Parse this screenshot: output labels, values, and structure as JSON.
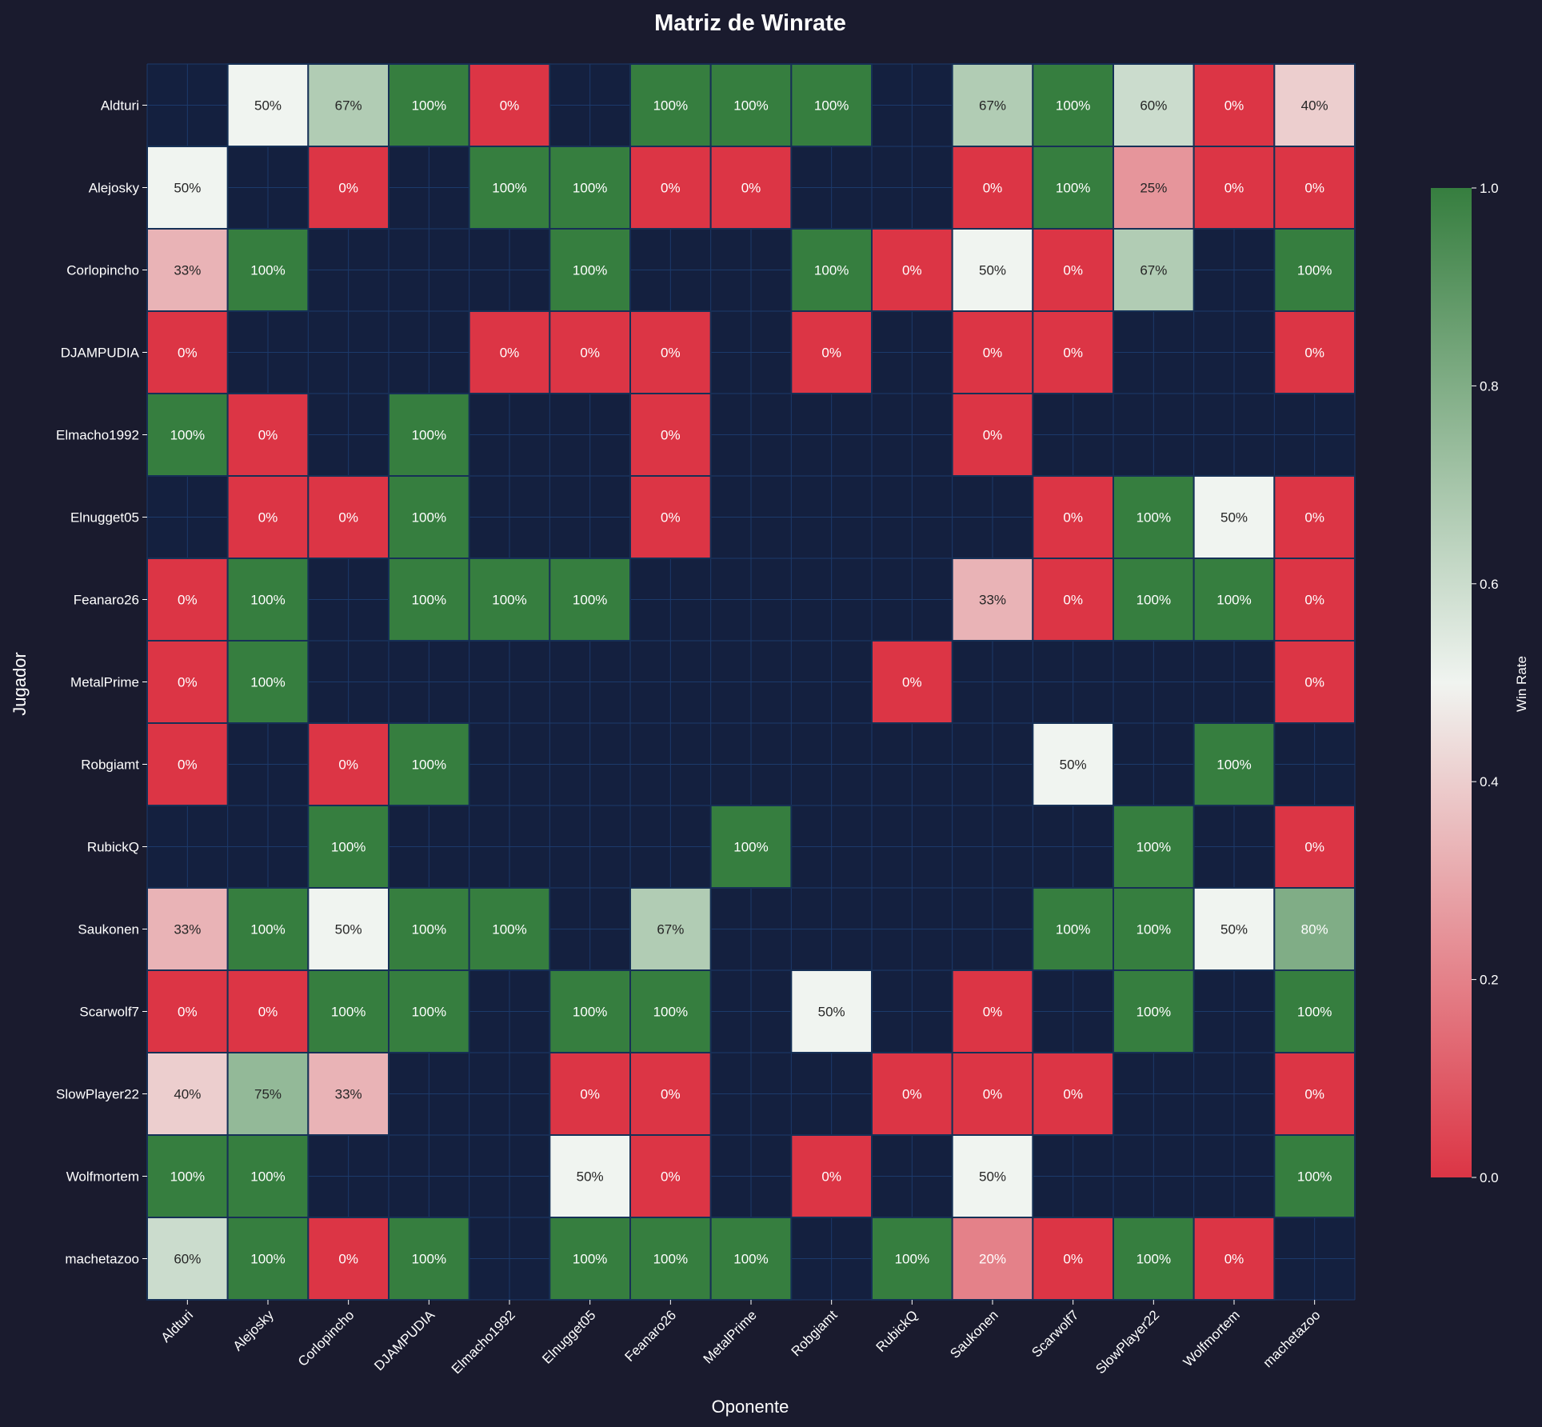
{
  "chart_data": {
    "type": "heatmap",
    "title": "Matriz de Winrate",
    "xlabel": "Oponente",
    "ylabel": "Jugador",
    "colorbar_label": "Win Rate",
    "colorbar_ticks": [
      "0.0",
      "0.2",
      "0.4",
      "0.6",
      "0.8",
      "1.0"
    ],
    "value_range": [
      0,
      1
    ],
    "colors": {
      "background": "#1a1b2e",
      "empty_cell": "#14203f",
      "grid_line": "#1c3a6b",
      "low": "#dc3545",
      "mid": "#f0f4f0",
      "high": "#367e3f"
    },
    "rows": [
      "Aldturi",
      "Alejosky",
      "Corlopincho",
      "DJAMPUDIA",
      "Elmacho1992",
      "Elnugget05",
      "Feanaro26",
      "MetalPrime",
      "Robgiamt",
      "RubickQ",
      "Saukonen",
      "Scarwolf7",
      "SlowPlayer22",
      "Wolfmortem",
      "machetazoo"
    ],
    "columns": [
      "Aldturi",
      "Alejosky",
      "Corlopincho",
      "DJAMPUDIA",
      "Elmacho1992",
      "Elnugget05",
      "Feanaro26",
      "MetalPrime",
      "Robgiamt",
      "RubickQ",
      "Saukonen",
      "Scarwolf7",
      "SlowPlayer22",
      "Wolfmortem",
      "machetazoo"
    ],
    "values": [
      [
        null,
        0.5,
        0.67,
        1.0,
        0.0,
        null,
        1.0,
        1.0,
        1.0,
        null,
        0.67,
        1.0,
        0.6,
        0.0,
        0.4
      ],
      [
        0.5,
        null,
        0.0,
        null,
        1.0,
        1.0,
        0.0,
        0.0,
        null,
        null,
        0.0,
        1.0,
        0.25,
        0.0,
        0.0
      ],
      [
        0.33,
        1.0,
        null,
        null,
        null,
        1.0,
        null,
        null,
        1.0,
        0.0,
        0.5,
        0.0,
        0.67,
        null,
        1.0
      ],
      [
        0.0,
        null,
        null,
        null,
        0.0,
        0.0,
        0.0,
        null,
        0.0,
        null,
        0.0,
        0.0,
        null,
        null,
        0.0
      ],
      [
        1.0,
        0.0,
        null,
        1.0,
        null,
        null,
        0.0,
        null,
        null,
        null,
        0.0,
        null,
        null,
        null,
        null
      ],
      [
        null,
        0.0,
        0.0,
        1.0,
        null,
        null,
        0.0,
        null,
        null,
        null,
        null,
        0.0,
        1.0,
        0.5,
        0.0
      ],
      [
        0.0,
        1.0,
        null,
        1.0,
        1.0,
        1.0,
        null,
        null,
        null,
        null,
        0.33,
        0.0,
        1.0,
        1.0,
        0.0
      ],
      [
        0.0,
        1.0,
        null,
        null,
        null,
        null,
        null,
        null,
        null,
        0.0,
        null,
        null,
        null,
        null,
        0.0
      ],
      [
        0.0,
        null,
        0.0,
        1.0,
        null,
        null,
        null,
        null,
        null,
        null,
        null,
        0.5,
        null,
        1.0,
        null
      ],
      [
        null,
        null,
        1.0,
        null,
        null,
        null,
        null,
        1.0,
        null,
        null,
        null,
        null,
        1.0,
        null,
        0.0
      ],
      [
        0.33,
        1.0,
        0.5,
        1.0,
        1.0,
        null,
        0.67,
        null,
        null,
        null,
        null,
        1.0,
        1.0,
        0.5,
        0.8
      ],
      [
        0.0,
        0.0,
        1.0,
        1.0,
        null,
        1.0,
        1.0,
        null,
        0.5,
        null,
        0.0,
        null,
        1.0,
        null,
        1.0
      ],
      [
        0.4,
        0.75,
        0.33,
        null,
        null,
        0.0,
        0.0,
        null,
        null,
        0.0,
        0.0,
        0.0,
        null,
        null,
        0.0
      ],
      [
        1.0,
        1.0,
        null,
        null,
        null,
        0.5,
        0.0,
        null,
        0.0,
        null,
        0.5,
        null,
        null,
        null,
        1.0
      ],
      [
        0.6,
        1.0,
        0.0,
        1.0,
        null,
        1.0,
        1.0,
        1.0,
        null,
        1.0,
        0.2,
        0.0,
        1.0,
        0.0,
        null
      ]
    ],
    "cell_labels": [
      [
        "",
        "50%",
        "67%",
        "100%",
        "0%",
        "",
        "100%",
        "100%",
        "100%",
        "",
        "67%",
        "100%",
        "60%",
        "0%",
        "40%"
      ],
      [
        "50%",
        "",
        "0%",
        "",
        "100%",
        "100%",
        "0%",
        "0%",
        "",
        "",
        "0%",
        "100%",
        "25%",
        "0%",
        "0%"
      ],
      [
        "33%",
        "100%",
        "",
        "",
        "",
        "100%",
        "",
        "",
        "100%",
        "0%",
        "50%",
        "0%",
        "67%",
        "",
        "100%"
      ],
      [
        "0%",
        "",
        "",
        "",
        "0%",
        "0%",
        "0%",
        "",
        "0%",
        "",
        "0%",
        "0%",
        "",
        "",
        "0%"
      ],
      [
        "100%",
        "0%",
        "",
        "100%",
        "",
        "",
        "0%",
        "",
        "",
        "",
        "0%",
        "",
        "",
        "",
        ""
      ],
      [
        "",
        "0%",
        "0%",
        "100%",
        "",
        "",
        "0%",
        "",
        "",
        "",
        "",
        "0%",
        "100%",
        "50%",
        "0%"
      ],
      [
        "0%",
        "100%",
        "",
        "100%",
        "100%",
        "100%",
        "",
        "",
        "",
        "",
        "33%",
        "0%",
        "100%",
        "100%",
        "0%"
      ],
      [
        "0%",
        "100%",
        "",
        "",
        "",
        "",
        "",
        "",
        "",
        "0%",
        "",
        "",
        "",
        "",
        "0%"
      ],
      [
        "0%",
        "",
        "0%",
        "100%",
        "",
        "",
        "",
        "",
        "",
        "",
        "",
        "50%",
        "",
        "100%",
        ""
      ],
      [
        "",
        "",
        "100%",
        "",
        "",
        "",
        "",
        "100%",
        "",
        "",
        "",
        "",
        "100%",
        "",
        "0%"
      ],
      [
        "33%",
        "100%",
        "50%",
        "100%",
        "100%",
        "",
        "67%",
        "",
        "",
        "",
        "",
        "100%",
        "100%",
        "50%",
        "80%"
      ],
      [
        "0%",
        "0%",
        "100%",
        "100%",
        "",
        "100%",
        "100%",
        "",
        "50%",
        "",
        "0%",
        "",
        "100%",
        "",
        "100%"
      ],
      [
        "40%",
        "75%",
        "33%",
        "",
        "",
        "0%",
        "0%",
        "",
        "",
        "0%",
        "0%",
        "0%",
        "",
        "",
        "0%"
      ],
      [
        "100%",
        "100%",
        "",
        "",
        "",
        "50%",
        "0%",
        "",
        "0%",
        "",
        "50%",
        "",
        "",
        "",
        "100%"
      ],
      [
        "60%",
        "100%",
        "0%",
        "100%",
        "",
        "100%",
        "100%",
        "100%",
        "",
        "100%",
        "20%",
        "0%",
        "100%",
        "0%",
        ""
      ]
    ]
  }
}
